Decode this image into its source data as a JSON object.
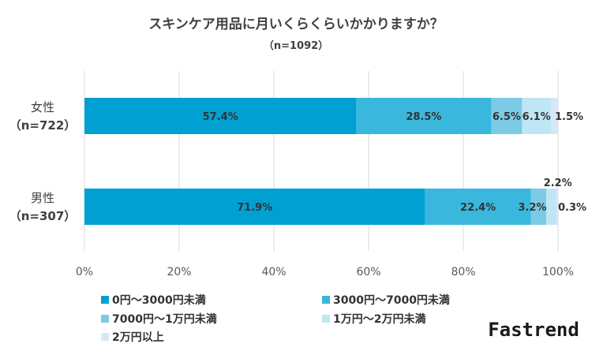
{
  "brand": "Fastrend",
  "chart_data": {
    "type": "bar",
    "orientation": "horizontal",
    "stacked": true,
    "percent": true,
    "title": "スキンケア用品に月いくらくらいかかりますか？",
    "subtitle": "（n=1092）",
    "categories": [
      {
        "name": "女性",
        "n": "（n=722）"
      },
      {
        "name": "男性",
        "n": "（n=307）"
      }
    ],
    "series": [
      {
        "name": "0円～3000円未満",
        "color": "#00a0d2",
        "values": [
          57.4,
          71.9
        ],
        "labels": [
          "57.4%",
          "71.9%"
        ]
      },
      {
        "name": "3000円～7000円未満",
        "color": "#3ab7dd",
        "values": [
          28.5,
          22.4
        ],
        "labels": [
          "28.5%",
          "22.4%"
        ]
      },
      {
        "name": "7000円～1万円未満",
        "color": "#7ccbe6",
        "values": [
          6.5,
          3.2
        ],
        "labels": [
          "6.5%",
          "3.2%"
        ]
      },
      {
        "name": "1万円～2万円未満",
        "color": "#bfe6f3",
        "values": [
          6.1,
          2.2
        ],
        "labels": [
          "6.1%",
          "2.2%"
        ]
      },
      {
        "name": "2万円以上",
        "color": "#dbe5f8",
        "values": [
          1.5,
          0.3
        ],
        "labels": [
          "1.5%",
          "0.3%"
        ]
      }
    ],
    "x_ticks": [
      "0%",
      "20%",
      "40%",
      "60%",
      "80%",
      "100%"
    ],
    "xlim": [
      0,
      100
    ],
    "grid": true,
    "legend_position": "bottom-left"
  }
}
